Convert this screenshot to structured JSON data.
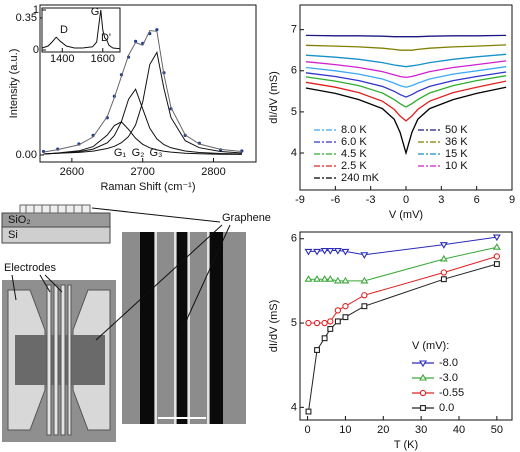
{
  "chart_data": [
    {
      "type": "line",
      "ylabel": "Intensity (a.u.)",
      "xlabel": "Raman Shift (cm⁻¹)",
      "xlim": [
        2555,
        2860
      ],
      "ylim": [
        -0.018,
        0.383
      ],
      "xticks": [
        2600,
        2700,
        2800
      ],
      "yticks": [
        {
          "value": 0,
          "label": "0.00"
        },
        {
          "value": 0.35,
          "label": "0.35"
        }
      ],
      "annotations": [
        "G₁",
        "G₂",
        "G₃"
      ],
      "series": [
        {
          "color": "#1c3c9c",
          "marker": "dot",
          "line": false,
          "x": [
            2560,
            2580,
            2610,
            2630,
            2650,
            2660,
            2670,
            2680,
            2690,
            2700,
            2710,
            2720,
            2730,
            2740,
            2760,
            2780,
            2810,
            2840
          ],
          "values": [
            0.009,
            0.015,
            0.028,
            0.05,
            0.095,
            0.15,
            0.205,
            0.25,
            0.29,
            0.285,
            0.31,
            0.32,
            0.21,
            0.118,
            0.05,
            0.03,
            0.013,
            0.01
          ]
        },
        {
          "color": "#666",
          "x": [
            2560,
            2580,
            2610,
            2630,
            2650,
            2660,
            2670,
            2680,
            2690,
            2700,
            2710,
            2720,
            2730,
            2740,
            2760,
            2780,
            2810,
            2840
          ],
          "values": [
            0.0074,
            0.0137,
            0.0259,
            0.0462,
            0.0984,
            0.1469,
            0.2005,
            0.2545,
            0.2872,
            0.2803,
            0.3175,
            0.3158,
            0.2059,
            0.1209,
            0.0511,
            0.0279,
            0.0143,
            0.0089
          ]
        },
        {
          "color": "#111",
          "x": [
            2560,
            2580,
            2610,
            2630,
            2650,
            2660,
            2670,
            2680,
            2690,
            2700,
            2710,
            2720,
            2730,
            2740,
            2760,
            2780,
            2810,
            2840
          ],
          "values": [
            0.0024,
            0.005,
            0.0107,
            0.0214,
            0.0509,
            0.0751,
            0.0843,
            0.0655,
            0.0425,
            0.0273,
            0.0183,
            0.0129,
            0.0095,
            0.0073,
            0.0046,
            0.0032,
            0.002,
            0.0014
          ]
        },
        {
          "color": "#111",
          "x": [
            2560,
            2580,
            2610,
            2630,
            2650,
            2660,
            2670,
            2680,
            2690,
            2700,
            2710,
            2720,
            2730,
            2740,
            2760,
            2780,
            2810,
            2840
          ],
          "values": [
            0.0025,
            0.0046,
            0.0086,
            0.0149,
            0.0311,
            0.0497,
            0.085,
            0.142,
            0.168,
            0.118,
            0.0682,
            0.0409,
            0.0264,
            0.0182,
            0.01,
            0.0063,
            0.0036,
            0.0024
          ]
        },
        {
          "color": "#111",
          "x": [
            2560,
            2580,
            2610,
            2630,
            2650,
            2660,
            2670,
            2680,
            2690,
            2700,
            2710,
            2720,
            2730,
            2740,
            2760,
            2780,
            2810,
            2840
          ],
          "values": [
            0.0025,
            0.0041,
            0.0066,
            0.0099,
            0.0164,
            0.0221,
            0.0312,
            0.047,
            0.0767,
            0.135,
            0.231,
            0.262,
            0.17,
            0.0954,
            0.0365,
            0.0184,
            0.0087,
            0.0051
          ]
        }
      ]
    },
    {
      "type": "line",
      "xlim": [
        1300,
        1685
      ],
      "ylim": [
        -0.05,
        1.05
      ],
      "xticks": [
        1400,
        1600
      ],
      "yticks": [
        0,
        1
      ],
      "annotations": [
        "D",
        "G",
        "D'"
      ],
      "series": [
        {
          "color": "#111",
          "x": [
            1300,
            1330,
            1350,
            1370,
            1390,
            1420,
            1460,
            1500,
            1550,
            1570,
            1580,
            1590,
            1600,
            1610,
            1620,
            1630,
            1650,
            1685
          ],
          "values": [
            0.05,
            0.1,
            0.2,
            0.32,
            0.22,
            0.1,
            0.05,
            0.05,
            0.08,
            0.2,
            0.6,
            1.0,
            0.5,
            0.3,
            0.25,
            0.12,
            0.05,
            0.03
          ]
        }
      ]
    },
    {
      "type": "line",
      "ylabel": "dI/dV (mS)",
      "xlabel": "V (mV)",
      "xlim": [
        -9,
        9
      ],
      "ylim": [
        3.1,
        7.6
      ],
      "xticks": [
        -9,
        -6,
        -3,
        0,
        3,
        6,
        9
      ],
      "yticks": [
        4,
        5,
        6,
        7
      ],
      "legend": "lower left",
      "legend_columns": 2,
      "x": [
        -8.5,
        -6,
        -4,
        -2,
        -1,
        -0.5,
        0,
        0.5,
        1,
        2,
        4,
        6,
        8.5
      ],
      "series": [
        {
          "name": "8.0 K",
          "color": "#3fa9f5",
          "values": [
            6.08,
            6.0,
            5.92,
            5.8,
            5.7,
            5.64,
            5.6,
            5.64,
            5.7,
            5.8,
            5.92,
            6.0,
            6.1
          ]
        },
        {
          "name": "6.0 K",
          "color": "#3333cc",
          "values": [
            5.95,
            5.86,
            5.76,
            5.62,
            5.5,
            5.42,
            5.36,
            5.42,
            5.5,
            5.62,
            5.76,
            5.86,
            5.97
          ]
        },
        {
          "name": "4.5 K",
          "color": "#2eae2e",
          "values": [
            5.85,
            5.75,
            5.64,
            5.46,
            5.3,
            5.2,
            5.12,
            5.2,
            5.3,
            5.46,
            5.64,
            5.76,
            5.88
          ]
        },
        {
          "name": "2.5 K",
          "color": "#e02020",
          "values": [
            5.72,
            5.6,
            5.47,
            5.26,
            5.06,
            4.9,
            4.78,
            4.9,
            5.06,
            5.26,
            5.47,
            5.6,
            5.75
          ]
        },
        {
          "name": "240 mK",
          "color": "#000000",
          "values": [
            5.58,
            5.45,
            5.3,
            5.08,
            4.82,
            4.5,
            4.0,
            4.5,
            4.82,
            5.08,
            5.3,
            5.45,
            5.6
          ]
        },
        {
          "name": "50 K",
          "color": "#1a1a80",
          "values": [
            6.86,
            6.85,
            6.85,
            6.84,
            6.83,
            6.83,
            6.83,
            6.83,
            6.83,
            6.84,
            6.85,
            6.85,
            6.86
          ]
        },
        {
          "name": "36 K",
          "color": "#808000",
          "values": [
            6.62,
            6.6,
            6.58,
            6.55,
            6.52,
            6.5,
            6.5,
            6.5,
            6.52,
            6.55,
            6.58,
            6.6,
            6.63
          ]
        },
        {
          "name": "15 K",
          "color": "#1890c8",
          "values": [
            6.38,
            6.33,
            6.28,
            6.2,
            6.14,
            6.12,
            6.1,
            6.12,
            6.14,
            6.2,
            6.28,
            6.34,
            6.4
          ]
        },
        {
          "name": "10 K",
          "color": "#d020d0",
          "values": [
            6.22,
            6.15,
            6.08,
            5.98,
            5.9,
            5.86,
            5.84,
            5.86,
            5.9,
            5.98,
            6.08,
            6.15,
            6.24
          ]
        }
      ]
    },
    {
      "type": "line",
      "ylabel": "dI/dV (mS)",
      "xlabel": "T (K)",
      "xlim": [
        -2,
        54
      ],
      "ylim": [
        3.85,
        6.08
      ],
      "xticks": [
        0,
        10,
        20,
        30,
        40,
        50
      ],
      "yticks": [
        4,
        5,
        6
      ],
      "legend": "lower right",
      "legend_title": "V (mV):",
      "x": [
        0.24,
        2.5,
        4.5,
        6,
        8,
        10,
        15,
        36,
        50
      ],
      "series": [
        {
          "name": "-8.0",
          "color": "#2b2bb8",
          "marker": "triangle-down",
          "values": [
            5.85,
            5.85,
            5.86,
            5.86,
            5.86,
            5.85,
            5.81,
            5.93,
            6.02
          ]
        },
        {
          "name": "-3.0",
          "color": "#3aa83a",
          "marker": "triangle-up",
          "values": [
            5.52,
            5.52,
            5.52,
            5.52,
            5.5,
            5.5,
            5.5,
            5.76,
            5.9
          ]
        },
        {
          "name": "-0.55",
          "color": "#e02020",
          "marker": "circle",
          "values": [
            5.0,
            5.0,
            5.0,
            5.02,
            5.15,
            5.2,
            5.33,
            5.6,
            5.79
          ]
        },
        {
          "name": "0.0",
          "color": "#222222",
          "marker": "square",
          "values": [
            3.95,
            4.68,
            4.82,
            4.93,
            5.02,
            5.07,
            5.2,
            5.52,
            5.7
          ]
        }
      ]
    }
  ],
  "diagram": {
    "sio2": "SiO₂",
    "si": "Si",
    "electrodes": "Electrodes",
    "graphene": "Graphene"
  }
}
